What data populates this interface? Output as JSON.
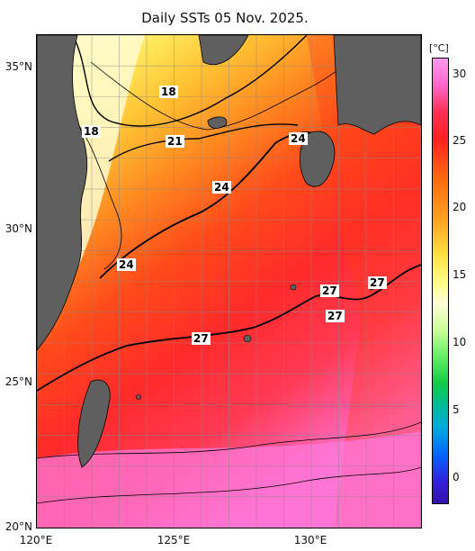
{
  "title": "Daily SSTs 05 Nov. 2025.",
  "map": {
    "lon_range": [
      120,
      134
    ],
    "lat_range": [
      20,
      36
    ],
    "lat_ticks": [
      {
        "label": "35°N",
        "value": 35
      },
      {
        "label": "30°N",
        "value": 30
      },
      {
        "label": "25°N",
        "value": 25
      },
      {
        "label": "20°N",
        "value": 20
      }
    ],
    "lon_ticks": [
      {
        "label": "120°E",
        "value": 120
      },
      {
        "label": "125°E",
        "value": 125
      },
      {
        "label": "130°E",
        "value": 130
      }
    ],
    "contour_labels": [
      "18",
      "18",
      "21",
      "24",
      "24",
      "24",
      "27",
      "27",
      "27",
      "27"
    ]
  },
  "colorbar": {
    "unit": "[°C]",
    "min": -2,
    "max": 31,
    "ticks": [
      {
        "label": "30",
        "value": 30
      },
      {
        "label": "25",
        "value": 25
      },
      {
        "label": "20",
        "value": 20
      },
      {
        "label": "15",
        "value": 15
      },
      {
        "label": "10",
        "value": 10
      },
      {
        "label": "5",
        "value": 5
      },
      {
        "label": "0",
        "value": 0
      }
    ]
  },
  "colors": {
    "land": "#5f5f5f",
    "warm": "#ff2a2a",
    "hot": "#ff66cc",
    "cool": "#fffcc0"
  }
}
